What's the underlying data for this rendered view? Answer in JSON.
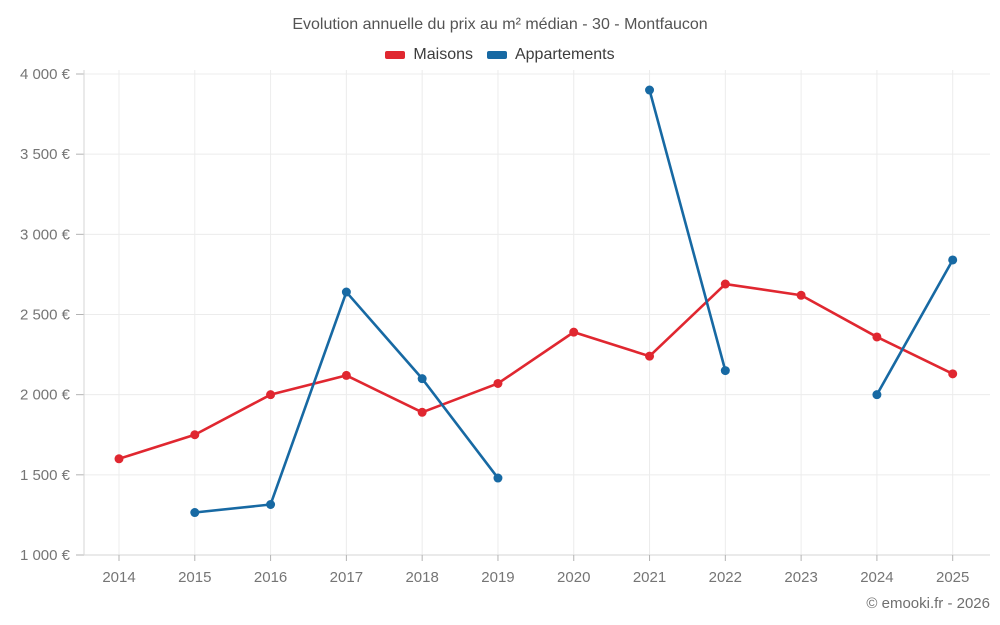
{
  "page": {
    "title": "Evolution annuelle du prix au m² médian - 30 - Montfaucon",
    "copyright": "© emooki.fr - 2026"
  },
  "legend": {
    "items": [
      {
        "label": "Maisons",
        "color": "#e02730"
      },
      {
        "label": "Appartements",
        "color": "#1769a3"
      }
    ]
  },
  "chart_data": {
    "type": "line",
    "title": "Evolution annuelle du prix au m² médian - 30 - Montfaucon",
    "x": [
      2014,
      2015,
      2016,
      2017,
      2018,
      2019,
      2020,
      2021,
      2022,
      2023,
      2024,
      2025
    ],
    "series": [
      {
        "name": "Maisons",
        "color": "#e02730",
        "values": [
          1600,
          1750,
          2000,
          2120,
          1890,
          2070,
          2390,
          2240,
          2690,
          2620,
          2360,
          2130
        ]
      },
      {
        "name": "Appartements",
        "color": "#1769a3",
        "values": [
          null,
          1265,
          1315,
          2640,
          2100,
          1480,
          null,
          3900,
          2150,
          null,
          2000,
          2840
        ]
      }
    ],
    "ylim": [
      1000,
      4000
    ],
    "ytick_step": 500,
    "ytick_suffix": " €",
    "xlabel": "",
    "ylabel": "",
    "grid": true,
    "legend_position": "top",
    "colors": {
      "grid": "#ececec",
      "axis": "#d6d6d6",
      "tick": "#b3b3b3",
      "label": "#757575"
    }
  }
}
